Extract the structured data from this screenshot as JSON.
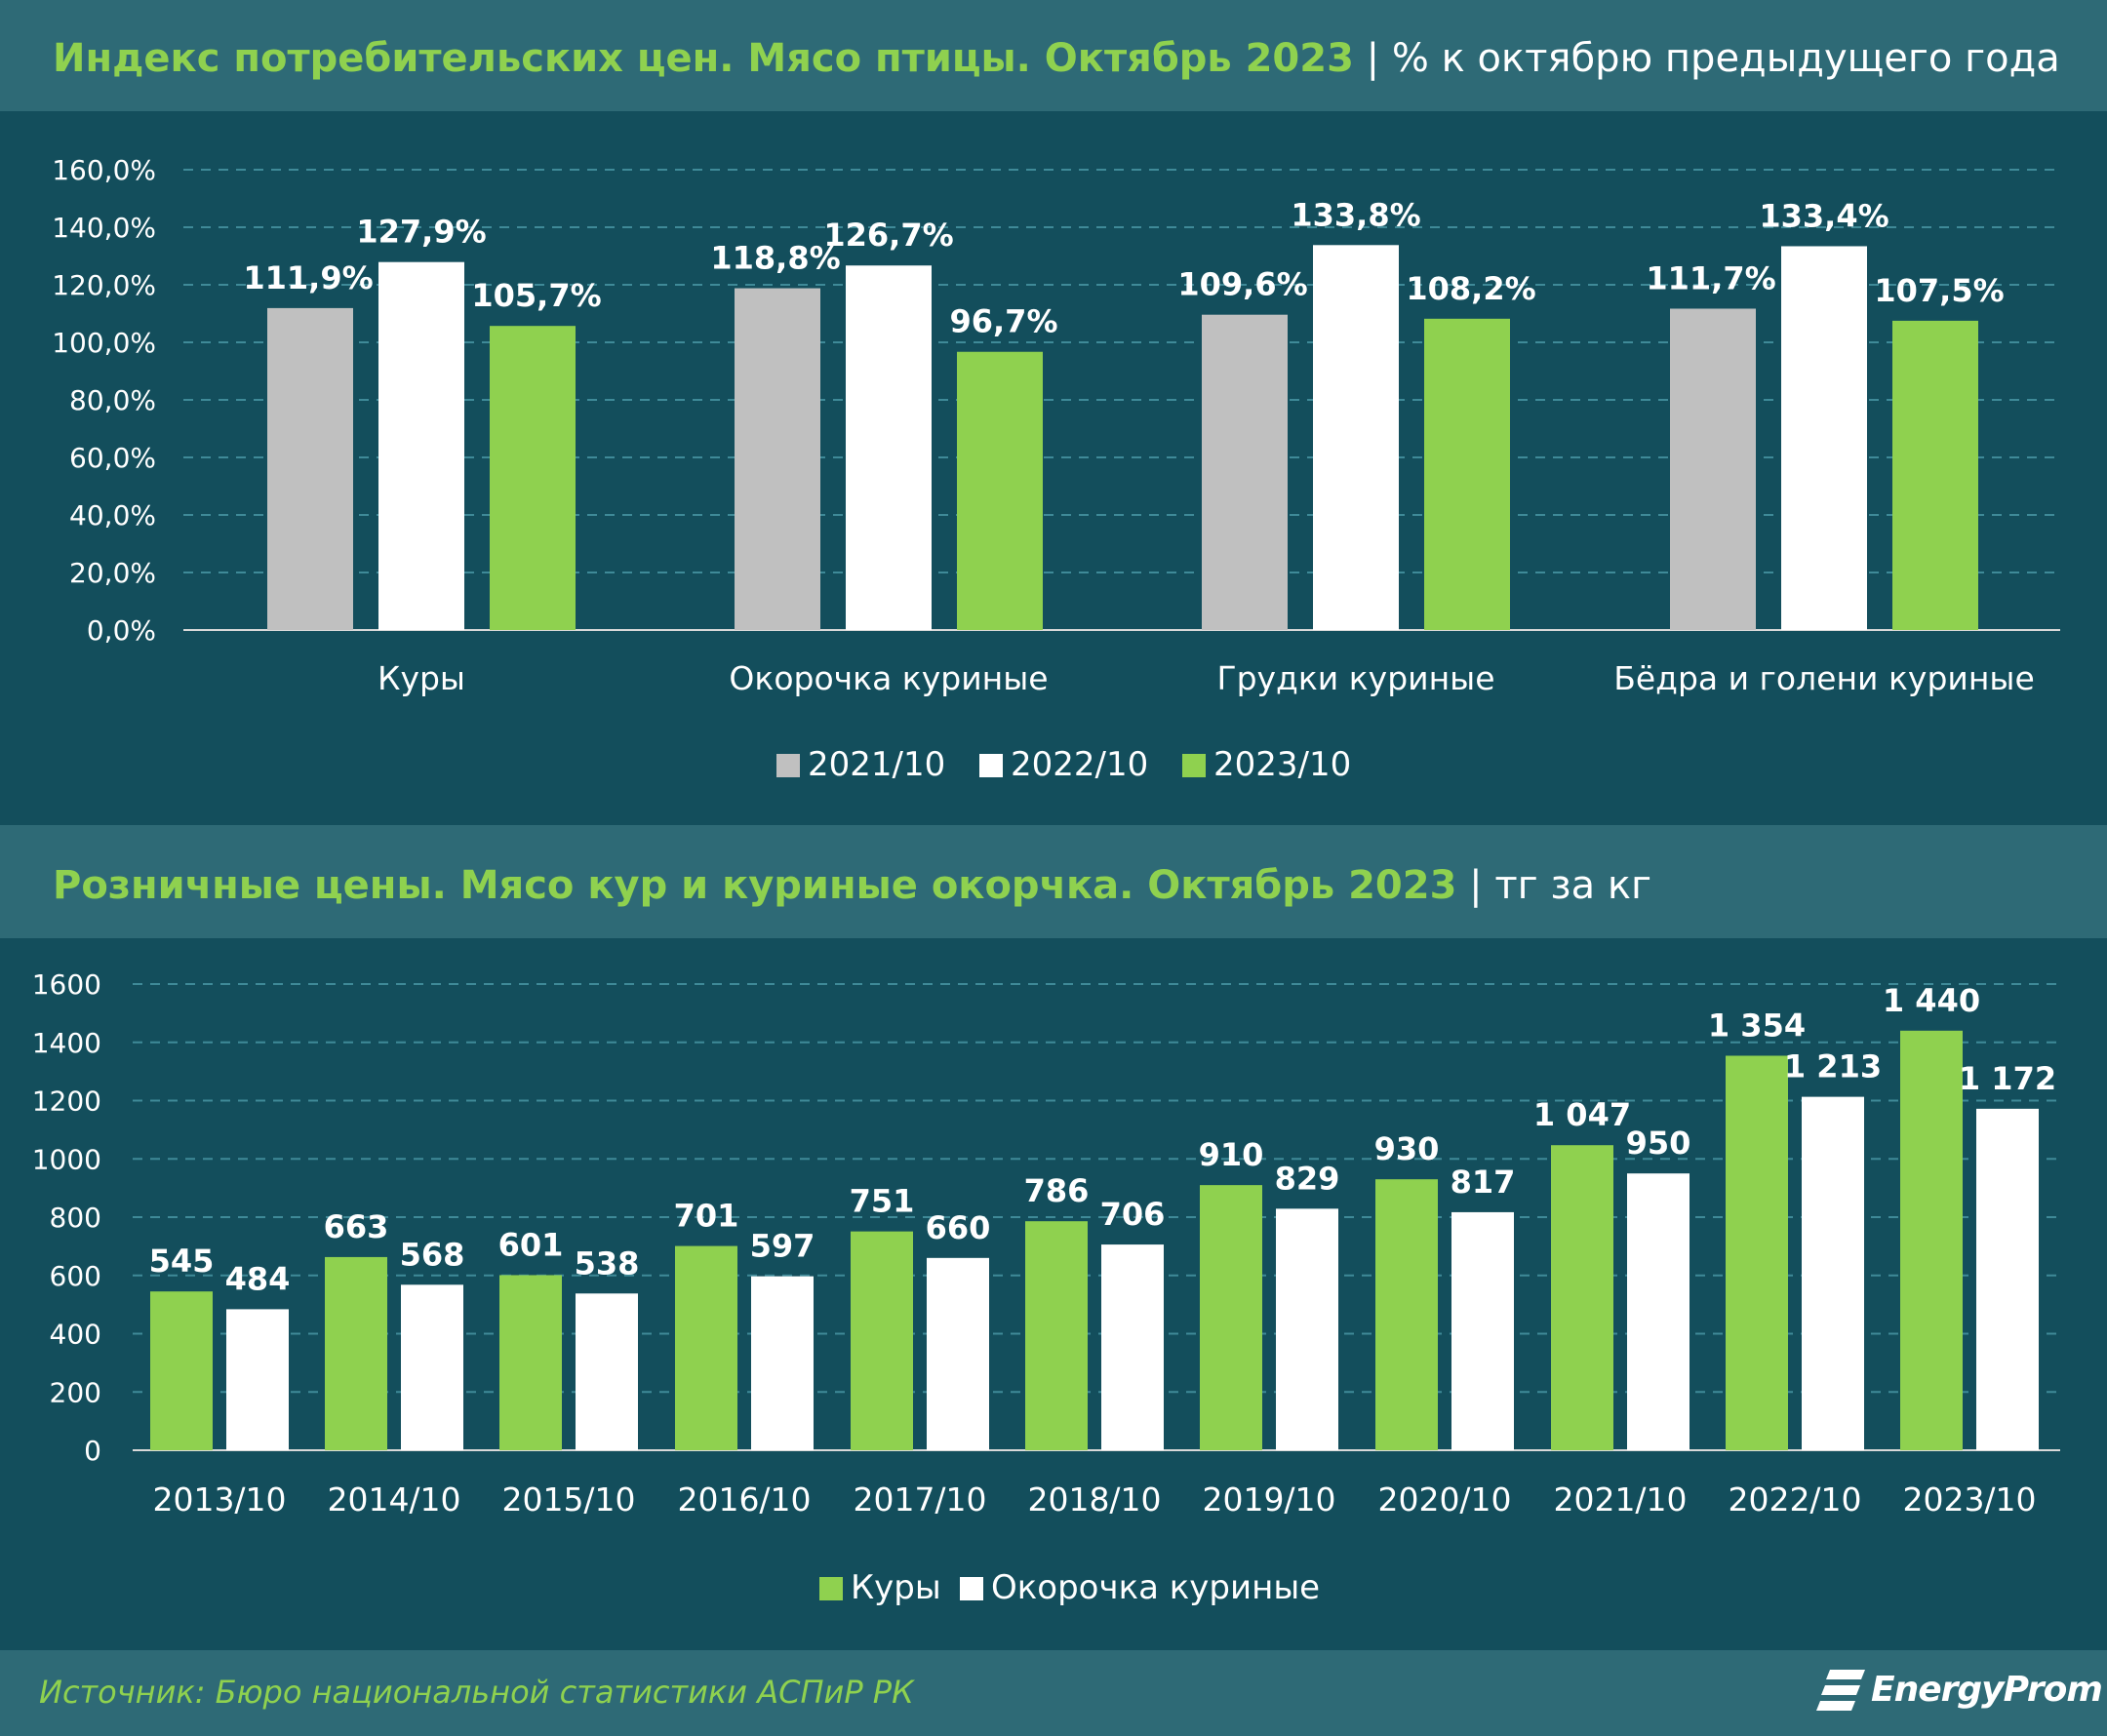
{
  "chart_data": [
    {
      "type": "bar",
      "title": "Индекс потребительских цен. Мясо птицы. Октябрь 2023",
      "subtitle": "% к октябрю предыдущего года",
      "categories": [
        "Куры",
        "Окорочка куриные",
        "Грудки куриные",
        "Бёдра и голени куриные"
      ],
      "series": [
        {
          "name": "2021/10",
          "values": [
            111.9,
            118.8,
            109.6,
            111.7
          ],
          "labels": [
            "111,9%",
            "118,8%",
            "109,6%",
            "111,7%"
          ],
          "color": "#c0c0c0"
        },
        {
          "name": "2022/10",
          "values": [
            127.9,
            126.7,
            133.8,
            133.4
          ],
          "labels": [
            "127,9%",
            "126,7%",
            "133,8%",
            "133,4%"
          ],
          "color": "#ffffff"
        },
        {
          "name": "2023/10",
          "values": [
            105.7,
            96.7,
            108.2,
            107.5
          ],
          "labels": [
            "105,7%",
            "96,7%",
            "108,2%",
            "107,5%"
          ],
          "color": "#8fd14f"
        }
      ],
      "ylim": [
        0,
        160
      ],
      "yticks": [
        0,
        20,
        40,
        60,
        80,
        100,
        120,
        140,
        160
      ],
      "ytick_labels": [
        "0,0%",
        "20,0%",
        "40,0%",
        "60,0%",
        "80,0%",
        "100,0%",
        "120,0%",
        "140,0%",
        "160,0%"
      ],
      "grid": true,
      "legend_position": "bottom"
    },
    {
      "type": "bar",
      "title": "Розничные цены. Мясо кур и куриные окорчка. Октябрь 2023",
      "subtitle": "тг за кг",
      "categories": [
        "2013/10",
        "2014/10",
        "2015/10",
        "2016/10",
        "2017/10",
        "2018/10",
        "2019/10",
        "2020/10",
        "2021/10",
        "2022/10",
        "2023/10"
      ],
      "series": [
        {
          "name": "Куры",
          "values": [
            545,
            663,
            601,
            701,
            751,
            786,
            910,
            930,
            1047,
            1354,
            1440
          ],
          "labels": [
            "545",
            "663",
            "601",
            "701",
            "751",
            "786",
            "910",
            "930",
            "1 047",
            "1 354",
            "1 440"
          ],
          "color": "#8fd14f"
        },
        {
          "name": "Окорочка куриные",
          "values": [
            484,
            568,
            538,
            597,
            660,
            706,
            829,
            817,
            950,
            1213,
            1172
          ],
          "labels": [
            "484",
            "568",
            "538",
            "597",
            "660",
            "706",
            "829",
            "817",
            "950",
            "1 213",
            "1 172"
          ],
          "color": "#ffffff"
        }
      ],
      "ylim": [
        0,
        1600
      ],
      "yticks": [
        0,
        200,
        400,
        600,
        800,
        1000,
        1200,
        1400,
        1600
      ],
      "ytick_labels": [
        "0",
        "200",
        "400",
        "600",
        "800",
        "1000",
        "1200",
        "1400",
        "1600"
      ],
      "grid": true,
      "legend_position": "bottom"
    }
  ],
  "charts_text": [
    {
      "title_main": "Индекс потребительских цен. Мясо птицы. Октябрь 2023",
      "title_sep": "|",
      "title_sub": "% к октябрю предыдущего года"
    },
    {
      "title_main": "Розничные цены. Мясо кур и куриные окорчка. Октябрь 2023",
      "title_sep": "|",
      "title_sub": "тг за кг"
    }
  ],
  "footer": {
    "source": "Источник: Бюро национальной статистики АСПиР РК",
    "logo_text": "EnergyProm"
  }
}
